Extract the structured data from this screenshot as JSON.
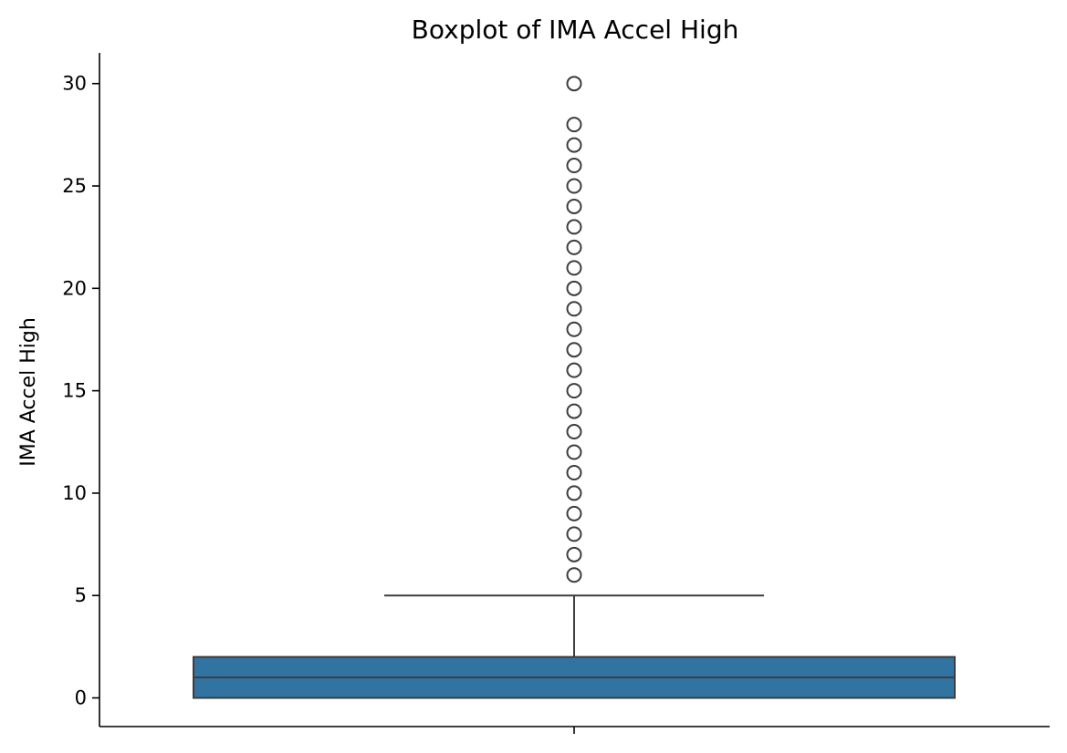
{
  "chart_data": {
    "type": "box",
    "title": "Boxplot of IMA Accel High",
    "xlabel": "",
    "ylabel": "IMA Accel High",
    "ylim": [
      -1.4,
      31.5
    ],
    "yticks": [
      0,
      5,
      10,
      15,
      20,
      25,
      30
    ],
    "grid": false,
    "colors": {
      "box_fill": "#3274a1",
      "line": "#3d3d3d"
    },
    "box": {
      "q1": 0,
      "median": 1,
      "q3": 2,
      "whisker_low": 0,
      "whisker_high": 5
    },
    "outliers": [
      6,
      7,
      8,
      9,
      10,
      11,
      12,
      13,
      14,
      15,
      16,
      17,
      18,
      19,
      20,
      21,
      22,
      23,
      24,
      25,
      26,
      27,
      28,
      30
    ]
  }
}
